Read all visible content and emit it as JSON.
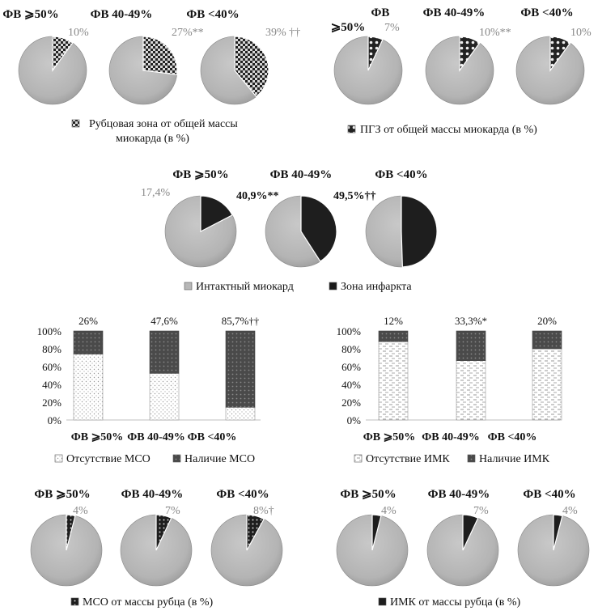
{
  "chart_data": [
    {
      "type": "pie",
      "id": "pie-scar",
      "categories": [
        "ФВ ⩾50%",
        "ФВ 40-49%",
        "ФВ <40%"
      ],
      "series": [
        {
          "name": "Рубцовая зона от общей массы миокарда (в %)",
          "values": [
            10,
            27,
            39
          ]
        }
      ],
      "value_labels": [
        "10%",
        "27%**",
        "39% ††"
      ],
      "legend": "Рубцовая зона от общей массы миокарда (в %)",
      "colors": {
        "slice": "#333333",
        "rest": "#b7b7b7"
      }
    },
    {
      "type": "pie",
      "id": "pie-pgz",
      "categories": [
        "ФВ ⩾50%",
        "ФВ 40-49%",
        "ФВ <40%"
      ],
      "series": [
        {
          "name": "ПГЗ от общей массы миокарда (в %)",
          "values": [
            7,
            10,
            10
          ]
        }
      ],
      "value_labels": [
        "7%",
        "10%**",
        "10%"
      ],
      "legend": "ПГЗ от общей массы миокарда (в %)",
      "colors": {
        "slice": "#222222",
        "rest": "#b7b7b7"
      }
    },
    {
      "type": "pie",
      "id": "pie-infarct",
      "categories": [
        "ФВ ⩾50%",
        "ФВ 40-49%",
        "ФВ <40%"
      ],
      "series": [
        {
          "name": "Зона инфаркта",
          "values": [
            17.4,
            40.9,
            49.5
          ]
        }
      ],
      "value_labels": [
        "17,4%",
        "40,9%**",
        "49,5%††"
      ],
      "legend_items": [
        {
          "label": "Интактный миокард",
          "color": "#b7b7b7"
        },
        {
          "label": "Зона инфаркта",
          "color": "#1a1a1a"
        }
      ]
    },
    {
      "type": "bar",
      "stacked": true,
      "id": "bar-mso",
      "categories": [
        "ФВ ⩾50%",
        "ФВ 40-49%",
        "ФВ <40%"
      ],
      "series": [
        {
          "name": "Отсутствие МСО",
          "values": [
            74,
            52.4,
            14.3
          ]
        },
        {
          "name": "Наличие МСО",
          "values": [
            26,
            47.6,
            85.7
          ]
        }
      ],
      "value_labels": [
        "26%",
        "47,6%",
        "85,7%††"
      ],
      "yticks": [
        "0%",
        "20%",
        "40%",
        "60%",
        "80%",
        "100%"
      ],
      "ylim": [
        0,
        100
      ]
    },
    {
      "type": "bar",
      "stacked": true,
      "id": "bar-imk",
      "categories": [
        "ФВ ⩾50%",
        "ФВ 40-49%",
        "ФВ <40%"
      ],
      "series": [
        {
          "name": "Отсутствие ИМК",
          "values": [
            88,
            66.7,
            80
          ]
        },
        {
          "name": "Наличие ИМК",
          "values": [
            12,
            33.3,
            20
          ]
        }
      ],
      "value_labels": [
        "12%",
        "33,3%*",
        "20%"
      ],
      "yticks": [
        "0%",
        "20%",
        "40%",
        "60%",
        "80%",
        "100%"
      ],
      "ylim": [
        0,
        100
      ]
    },
    {
      "type": "pie",
      "id": "pie-mso",
      "categories": [
        "ФВ ⩾50%",
        "ФВ 40-49%",
        "ФВ <40%"
      ],
      "series": [
        {
          "name": "МСО от массы рубца (в %)",
          "values": [
            4,
            7,
            8
          ]
        }
      ],
      "value_labels": [
        "4%",
        "7%",
        "8%†"
      ],
      "legend": "МСО от массы рубца (в %)"
    },
    {
      "type": "pie",
      "id": "pie-imk",
      "categories": [
        "ФВ ⩾50%",
        "ФВ 40-49%",
        "ФВ <40%"
      ],
      "series": [
        {
          "name": "ИМК от массы рубца (в %)",
          "values": [
            4,
            7,
            4
          ]
        }
      ],
      "value_labels": [
        "4%",
        "7%",
        "4%"
      ],
      "legend": "ИМК от массы рубца (в %)"
    }
  ],
  "pgz_header_first": [
    "ФВ",
    "⩾50%"
  ]
}
